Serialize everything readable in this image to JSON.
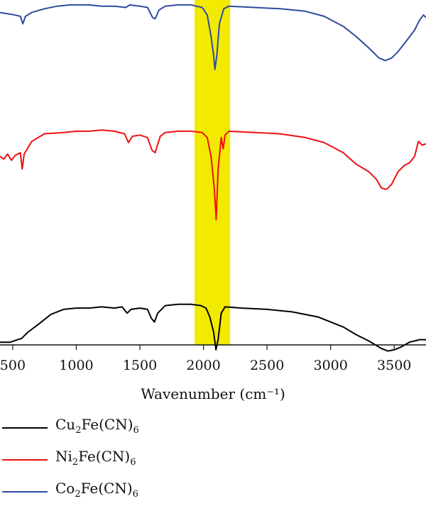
{
  "chart_data": {
    "type": "line",
    "xlabel": "Wavenumber (cm⁻¹)",
    "xlim": [
      400,
      3750
    ],
    "xticks": [
      500,
      1000,
      1500,
      2000,
      2500,
      3000,
      3500
    ],
    "yticks_shown": false,
    "highlight_band": {
      "x": [
        1930,
        2210
      ],
      "color": "#f2ea00"
    },
    "series": [
      {
        "name": "Cu2Fe(CN)6",
        "formula": {
          "a": "Cu",
          "a_sub": "2",
          "b": "Fe(CN)",
          "b_sub": "6"
        },
        "color": "#000000",
        "offset": 0,
        "points": [
          [
            400,
            0.1
          ],
          [
            480,
            0.1
          ],
          [
            540,
            0.12
          ],
          [
            570,
            0.13
          ],
          [
            590,
            0.15
          ],
          [
            620,
            0.18
          ],
          [
            700,
            0.24
          ],
          [
            800,
            0.32
          ],
          [
            900,
            0.36
          ],
          [
            1000,
            0.37
          ],
          [
            1100,
            0.37
          ],
          [
            1200,
            0.38
          ],
          [
            1300,
            0.37
          ],
          [
            1360,
            0.38
          ],
          [
            1400,
            0.33
          ],
          [
            1430,
            0.36
          ],
          [
            1500,
            0.37
          ],
          [
            1560,
            0.36
          ],
          [
            1590,
            0.29
          ],
          [
            1615,
            0.26
          ],
          [
            1640,
            0.33
          ],
          [
            1700,
            0.39
          ],
          [
            1800,
            0.4
          ],
          [
            1900,
            0.4
          ],
          [
            1980,
            0.39
          ],
          [
            2020,
            0.37
          ],
          [
            2050,
            0.3
          ],
          [
            2080,
            0.18
          ],
          [
            2098,
            0.04
          ],
          [
            2115,
            0.12
          ],
          [
            2140,
            0.33
          ],
          [
            2170,
            0.38
          ],
          [
            2300,
            0.37
          ],
          [
            2500,
            0.36
          ],
          [
            2700,
            0.34
          ],
          [
            2900,
            0.3
          ],
          [
            3000,
            0.26
          ],
          [
            3100,
            0.22
          ],
          [
            3200,
            0.16
          ],
          [
            3300,
            0.11
          ],
          [
            3350,
            0.08
          ],
          [
            3400,
            0.05
          ],
          [
            3450,
            0.03
          ],
          [
            3500,
            0.04
          ],
          [
            3550,
            0.06
          ],
          [
            3620,
            0.1
          ],
          [
            3700,
            0.12
          ],
          [
            3750,
            0.12
          ]
        ]
      },
      {
        "name": "Ni2Fe(CN)6",
        "formula": {
          "a": "Ni",
          "a_sub": "2",
          "b": "Fe(CN)",
          "b_sub": "6"
        },
        "color": "#ee1111",
        "offset": 1.17,
        "points": [
          [
            400,
            0.4
          ],
          [
            430,
            0.38
          ],
          [
            460,
            0.42
          ],
          [
            490,
            0.37
          ],
          [
            520,
            0.41
          ],
          [
            560,
            0.43
          ],
          [
            575,
            0.3
          ],
          [
            590,
            0.42
          ],
          [
            650,
            0.52
          ],
          [
            750,
            0.58
          ],
          [
            900,
            0.59
          ],
          [
            1000,
            0.6
          ],
          [
            1100,
            0.6
          ],
          [
            1200,
            0.61
          ],
          [
            1300,
            0.6
          ],
          [
            1380,
            0.58
          ],
          [
            1410,
            0.51
          ],
          [
            1440,
            0.56
          ],
          [
            1500,
            0.57
          ],
          [
            1560,
            0.55
          ],
          [
            1595,
            0.45
          ],
          [
            1620,
            0.43
          ],
          [
            1660,
            0.56
          ],
          [
            1700,
            0.59
          ],
          [
            1800,
            0.6
          ],
          [
            1900,
            0.6
          ],
          [
            1990,
            0.59
          ],
          [
            2030,
            0.55
          ],
          [
            2060,
            0.4
          ],
          [
            2085,
            0.15
          ],
          [
            2100,
            -0.1
          ],
          [
            2115,
            0.3
          ],
          [
            2125,
            0.4
          ],
          [
            2140,
            0.55
          ],
          [
            2155,
            0.46
          ],
          [
            2170,
            0.57
          ],
          [
            2200,
            0.6
          ],
          [
            2400,
            0.59
          ],
          [
            2600,
            0.58
          ],
          [
            2800,
            0.55
          ],
          [
            2950,
            0.51
          ],
          [
            3100,
            0.43
          ],
          [
            3200,
            0.34
          ],
          [
            3300,
            0.28
          ],
          [
            3360,
            0.22
          ],
          [
            3400,
            0.15
          ],
          [
            3440,
            0.14
          ],
          [
            3480,
            0.18
          ],
          [
            3530,
            0.28
          ],
          [
            3580,
            0.33
          ],
          [
            3620,
            0.35
          ],
          [
            3660,
            0.4
          ],
          [
            3690,
            0.52
          ],
          [
            3720,
            0.49
          ],
          [
            3750,
            0.5
          ]
        ]
      },
      {
        "name": "Co2Fe(CN)6",
        "formula": {
          "a": "Co",
          "a_sub": "2",
          "b": "Fe(CN)",
          "b_sub": "6"
        },
        "color": "#2e4b9e",
        "offset": 2.07,
        "points": [
          [
            400,
            0.64
          ],
          [
            460,
            0.63
          ],
          [
            520,
            0.62
          ],
          [
            560,
            0.61
          ],
          [
            580,
            0.55
          ],
          [
            600,
            0.61
          ],
          [
            650,
            0.64
          ],
          [
            750,
            0.67
          ],
          [
            850,
            0.69
          ],
          [
            950,
            0.7
          ],
          [
            1100,
            0.7
          ],
          [
            1200,
            0.69
          ],
          [
            1300,
            0.69
          ],
          [
            1390,
            0.68
          ],
          [
            1420,
            0.7
          ],
          [
            1500,
            0.69
          ],
          [
            1560,
            0.68
          ],
          [
            1600,
            0.6
          ],
          [
            1620,
            0.59
          ],
          [
            1650,
            0.66
          ],
          [
            1700,
            0.69
          ],
          [
            1800,
            0.7
          ],
          [
            1900,
            0.7
          ],
          [
            1990,
            0.68
          ],
          [
            2030,
            0.62
          ],
          [
            2060,
            0.45
          ],
          [
            2080,
            0.3
          ],
          [
            2090,
            0.19
          ],
          [
            2105,
            0.3
          ],
          [
            2125,
            0.55
          ],
          [
            2160,
            0.67
          ],
          [
            2200,
            0.69
          ],
          [
            2400,
            0.68
          ],
          [
            2600,
            0.67
          ],
          [
            2800,
            0.65
          ],
          [
            2950,
            0.61
          ],
          [
            3100,
            0.53
          ],
          [
            3200,
            0.45
          ],
          [
            3300,
            0.36
          ],
          [
            3380,
            0.28
          ],
          [
            3430,
            0.26
          ],
          [
            3480,
            0.28
          ],
          [
            3530,
            0.33
          ],
          [
            3600,
            0.42
          ],
          [
            3660,
            0.5
          ],
          [
            3700,
            0.58
          ],
          [
            3730,
            0.62
          ],
          [
            3750,
            0.6
          ]
        ]
      }
    ]
  }
}
